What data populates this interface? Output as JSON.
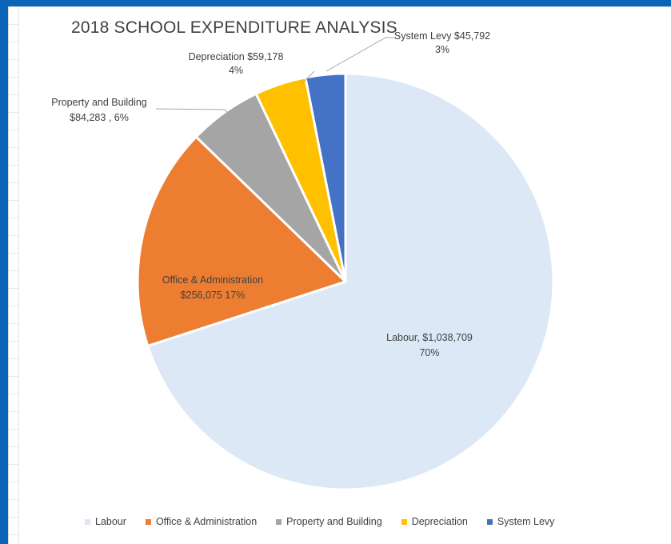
{
  "chart_data": {
    "type": "pie",
    "title": "2018 SCHOOL EXPENDITURE ANALYSIS",
    "slices": [
      {
        "name": "Labour",
        "value": 1038709,
        "value_label": "$1,038,709",
        "percent_label": "70%",
        "color": "#dce8f5"
      },
      {
        "name": "Office & Administration",
        "value": 256075,
        "value_label": "$256,075",
        "percent_label": "17%",
        "color": "#ed7d31"
      },
      {
        "name": "Property and Building",
        "value": 84283,
        "value_label": "$84,283",
        "percent_label": "6%",
        "color": "#a5a5a5"
      },
      {
        "name": "Depreciation",
        "value": 59178,
        "value_label": "$59,178",
        "percent_label": "4%",
        "color": "#ffc000"
      },
      {
        "name": "System Levy",
        "value": 45792,
        "value_label": "$45,792",
        "percent_label": "3%",
        "color": "#4472c4"
      }
    ],
    "labels": {
      "labour": {
        "line1": "Labour,  $1,038,709",
        "line2": "70%"
      },
      "office": {
        "line1": "Office & Administration",
        "line2": "$256,075  17%"
      },
      "property": {
        "line1": "Property and Building",
        "line2": "$84,283 , 6%"
      },
      "depreciation": {
        "line1": "Depreciation  $59,178",
        "line2": "4%"
      },
      "levy": {
        "line1": "System Levy  $45,792",
        "line2": "3%"
      }
    },
    "legend": [
      "Labour",
      "Office & Administration",
      "Property and Building",
      "Depreciation",
      "System Levy"
    ],
    "legend_position": "bottom"
  }
}
